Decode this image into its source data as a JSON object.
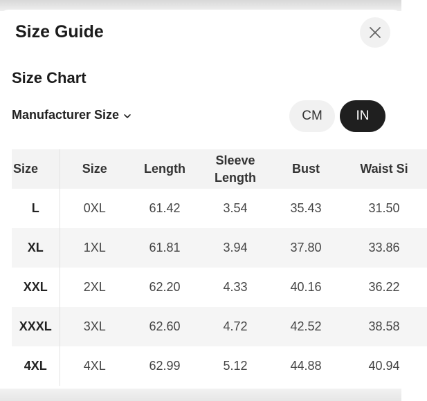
{
  "dialog": {
    "title": "Size Guide",
    "close_icon": "close-icon"
  },
  "section": {
    "title": "Size Chart"
  },
  "size_selector": {
    "label": "Manufacturer Size",
    "icon": "chevron-down-icon"
  },
  "units": {
    "cm_label": "CM",
    "in_label": "IN",
    "selected": "IN",
    "selected_color": "#1f1f1f"
  },
  "table": {
    "headers": {
      "first": "Size",
      "size": "Size",
      "length": "Length",
      "sleeve_line1": "Sleeve",
      "sleeve_line2": "Length",
      "bust": "Bust",
      "waist": "Waist Si"
    },
    "rows": [
      {
        "label": "L",
        "size": "0XL",
        "length": "61.42",
        "sleeve": "3.54",
        "bust": "35.43",
        "waist": "31.50"
      },
      {
        "label": "XL",
        "size": "1XL",
        "length": "61.81",
        "sleeve": "3.94",
        "bust": "37.80",
        "waist": "33.86"
      },
      {
        "label": "XXL",
        "size": "2XL",
        "length": "62.20",
        "sleeve": "4.33",
        "bust": "40.16",
        "waist": "36.22"
      },
      {
        "label": "XXXL",
        "size": "3XL",
        "length": "62.60",
        "sleeve": "4.72",
        "bust": "42.52",
        "waist": "38.58"
      },
      {
        "label": "4XL",
        "size": "4XL",
        "length": "62.99",
        "sleeve": "5.12",
        "bust": "44.88",
        "waist": "40.94"
      }
    ]
  }
}
